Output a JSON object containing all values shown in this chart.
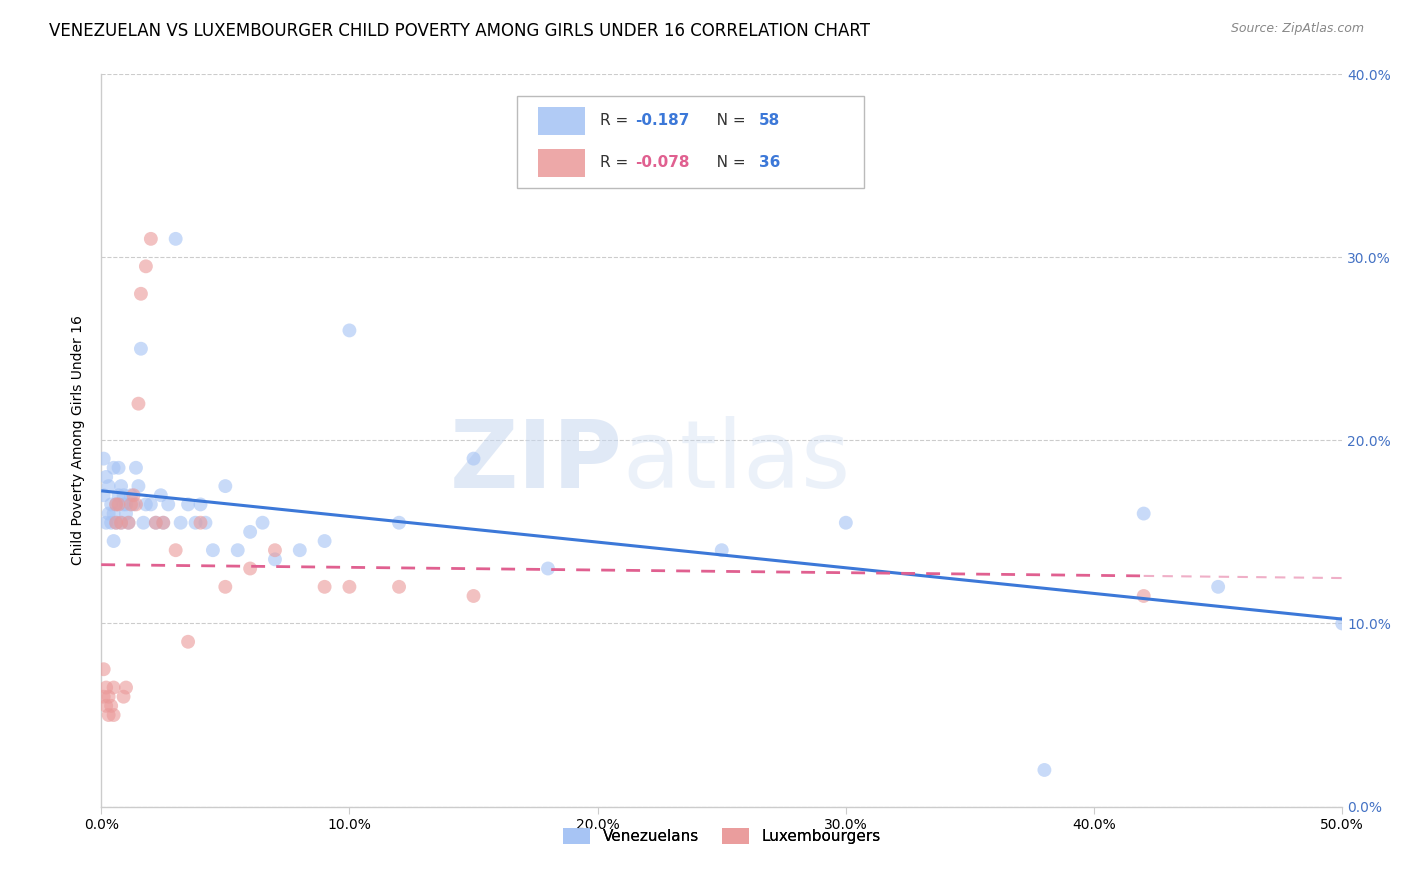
{
  "title": "VENEZUELAN VS LUXEMBOURGER CHILD POVERTY AMONG GIRLS UNDER 16 CORRELATION CHART",
  "source": "Source: ZipAtlas.com",
  "ylabel": "Child Poverty Among Girls Under 16",
  "watermark_zip": "ZIP",
  "watermark_atlas": "atlas",
  "venezuelans": {
    "label": "Venezuelans",
    "color": "#a4c2f4",
    "R": -0.187,
    "N": 58,
    "x": [
      0.001,
      0.001,
      0.002,
      0.002,
      0.003,
      0.003,
      0.004,
      0.004,
      0.005,
      0.005,
      0.005,
      0.006,
      0.006,
      0.007,
      0.007,
      0.008,
      0.008,
      0.009,
      0.009,
      0.01,
      0.01,
      0.011,
      0.012,
      0.013,
      0.014,
      0.015,
      0.016,
      0.017,
      0.018,
      0.02,
      0.022,
      0.024,
      0.025,
      0.027,
      0.03,
      0.032,
      0.035,
      0.038,
      0.04,
      0.042,
      0.045,
      0.05,
      0.055,
      0.06,
      0.065,
      0.07,
      0.08,
      0.09,
      0.1,
      0.12,
      0.15,
      0.18,
      0.25,
      0.3,
      0.38,
      0.42,
      0.45,
      0.5
    ],
    "y": [
      0.17,
      0.19,
      0.18,
      0.155,
      0.16,
      0.175,
      0.165,
      0.155,
      0.145,
      0.185,
      0.16,
      0.155,
      0.165,
      0.17,
      0.185,
      0.175,
      0.155,
      0.165,
      0.17,
      0.165,
      0.16,
      0.155,
      0.17,
      0.165,
      0.185,
      0.175,
      0.25,
      0.155,
      0.165,
      0.165,
      0.155,
      0.17,
      0.155,
      0.165,
      0.31,
      0.155,
      0.165,
      0.155,
      0.165,
      0.155,
      0.14,
      0.175,
      0.14,
      0.15,
      0.155,
      0.135,
      0.14,
      0.145,
      0.26,
      0.155,
      0.19,
      0.13,
      0.14,
      0.155,
      0.02,
      0.16,
      0.12,
      0.1
    ]
  },
  "luxembourgers": {
    "label": "Luxembourgers",
    "color": "#ea9999",
    "R": -0.078,
    "N": 36,
    "x": [
      0.001,
      0.001,
      0.002,
      0.002,
      0.003,
      0.003,
      0.004,
      0.005,
      0.005,
      0.006,
      0.006,
      0.007,
      0.008,
      0.009,
      0.01,
      0.011,
      0.012,
      0.013,
      0.014,
      0.015,
      0.016,
      0.018,
      0.02,
      0.022,
      0.025,
      0.03,
      0.035,
      0.04,
      0.05,
      0.06,
      0.07,
      0.09,
      0.1,
      0.12,
      0.15,
      0.42
    ],
    "y": [
      0.06,
      0.075,
      0.065,
      0.055,
      0.05,
      0.06,
      0.055,
      0.065,
      0.05,
      0.155,
      0.165,
      0.165,
      0.155,
      0.06,
      0.065,
      0.155,
      0.165,
      0.17,
      0.165,
      0.22,
      0.28,
      0.295,
      0.31,
      0.155,
      0.155,
      0.14,
      0.09,
      0.155,
      0.12,
      0.13,
      0.14,
      0.12,
      0.12,
      0.12,
      0.115,
      0.115
    ]
  },
  "xlim": [
    0.0,
    0.5
  ],
  "ylim": [
    0.0,
    0.4
  ],
  "xticks": [
    0.0,
    0.1,
    0.2,
    0.3,
    0.4,
    0.5
  ],
  "xtick_labels": [
    "0.0%",
    "10.0%",
    "20.0%",
    "30.0%",
    "40.0%",
    "50.0%"
  ],
  "yticks": [
    0.0,
    0.1,
    0.2,
    0.3,
    0.4
  ],
  "ytick_labels_right": [
    "0.0%",
    "10.0%",
    "20.0%",
    "30.0%",
    "40.0%"
  ],
  "grid_color": "#cccccc",
  "background_color": "#ffffff",
  "title_fontsize": 12,
  "axis_label_fontsize": 10,
  "tick_fontsize": 10,
  "dot_size": 100,
  "dot_alpha": 0.6,
  "line_color_venezuelans": "#3c78d8",
  "line_color_luxembourgers": "#e06090",
  "right_axis_color": "#4472c4",
  "legend_r_color_blue": "#3c78d8",
  "legend_r_color_pink": "#e06090",
  "legend_n_color": "#3c78d8"
}
